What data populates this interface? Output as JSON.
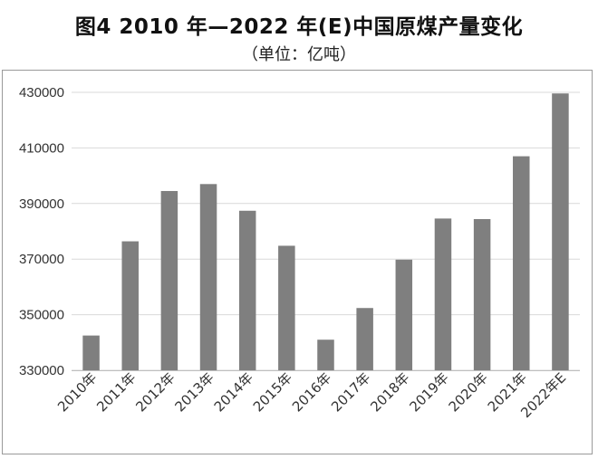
{
  "chart_data": {
    "type": "bar",
    "title": "图4 2010 年—2022 年(E)中国原煤产量变化",
    "subtitle": "（单位：亿吨）",
    "xlabel": "",
    "ylabel": "",
    "categories": [
      "2010年",
      "2011年",
      "2012年",
      "2013年",
      "2014年",
      "2015年",
      "2016年",
      "2017年",
      "2018年",
      "2019年",
      "2020年",
      "2021年",
      "2022年E"
    ],
    "values": [
      342500,
      376400,
      394500,
      397000,
      387400,
      374800,
      341000,
      352400,
      369800,
      384600,
      384400,
      407000,
      429600
    ],
    "ylim": [
      330000,
      430000
    ],
    "yticks": [
      330000,
      350000,
      370000,
      390000,
      410000,
      430000
    ],
    "grid": true,
    "legend": "none",
    "bar_color": "#7f7f7f",
    "grid_color": "#d9d9d9"
  }
}
